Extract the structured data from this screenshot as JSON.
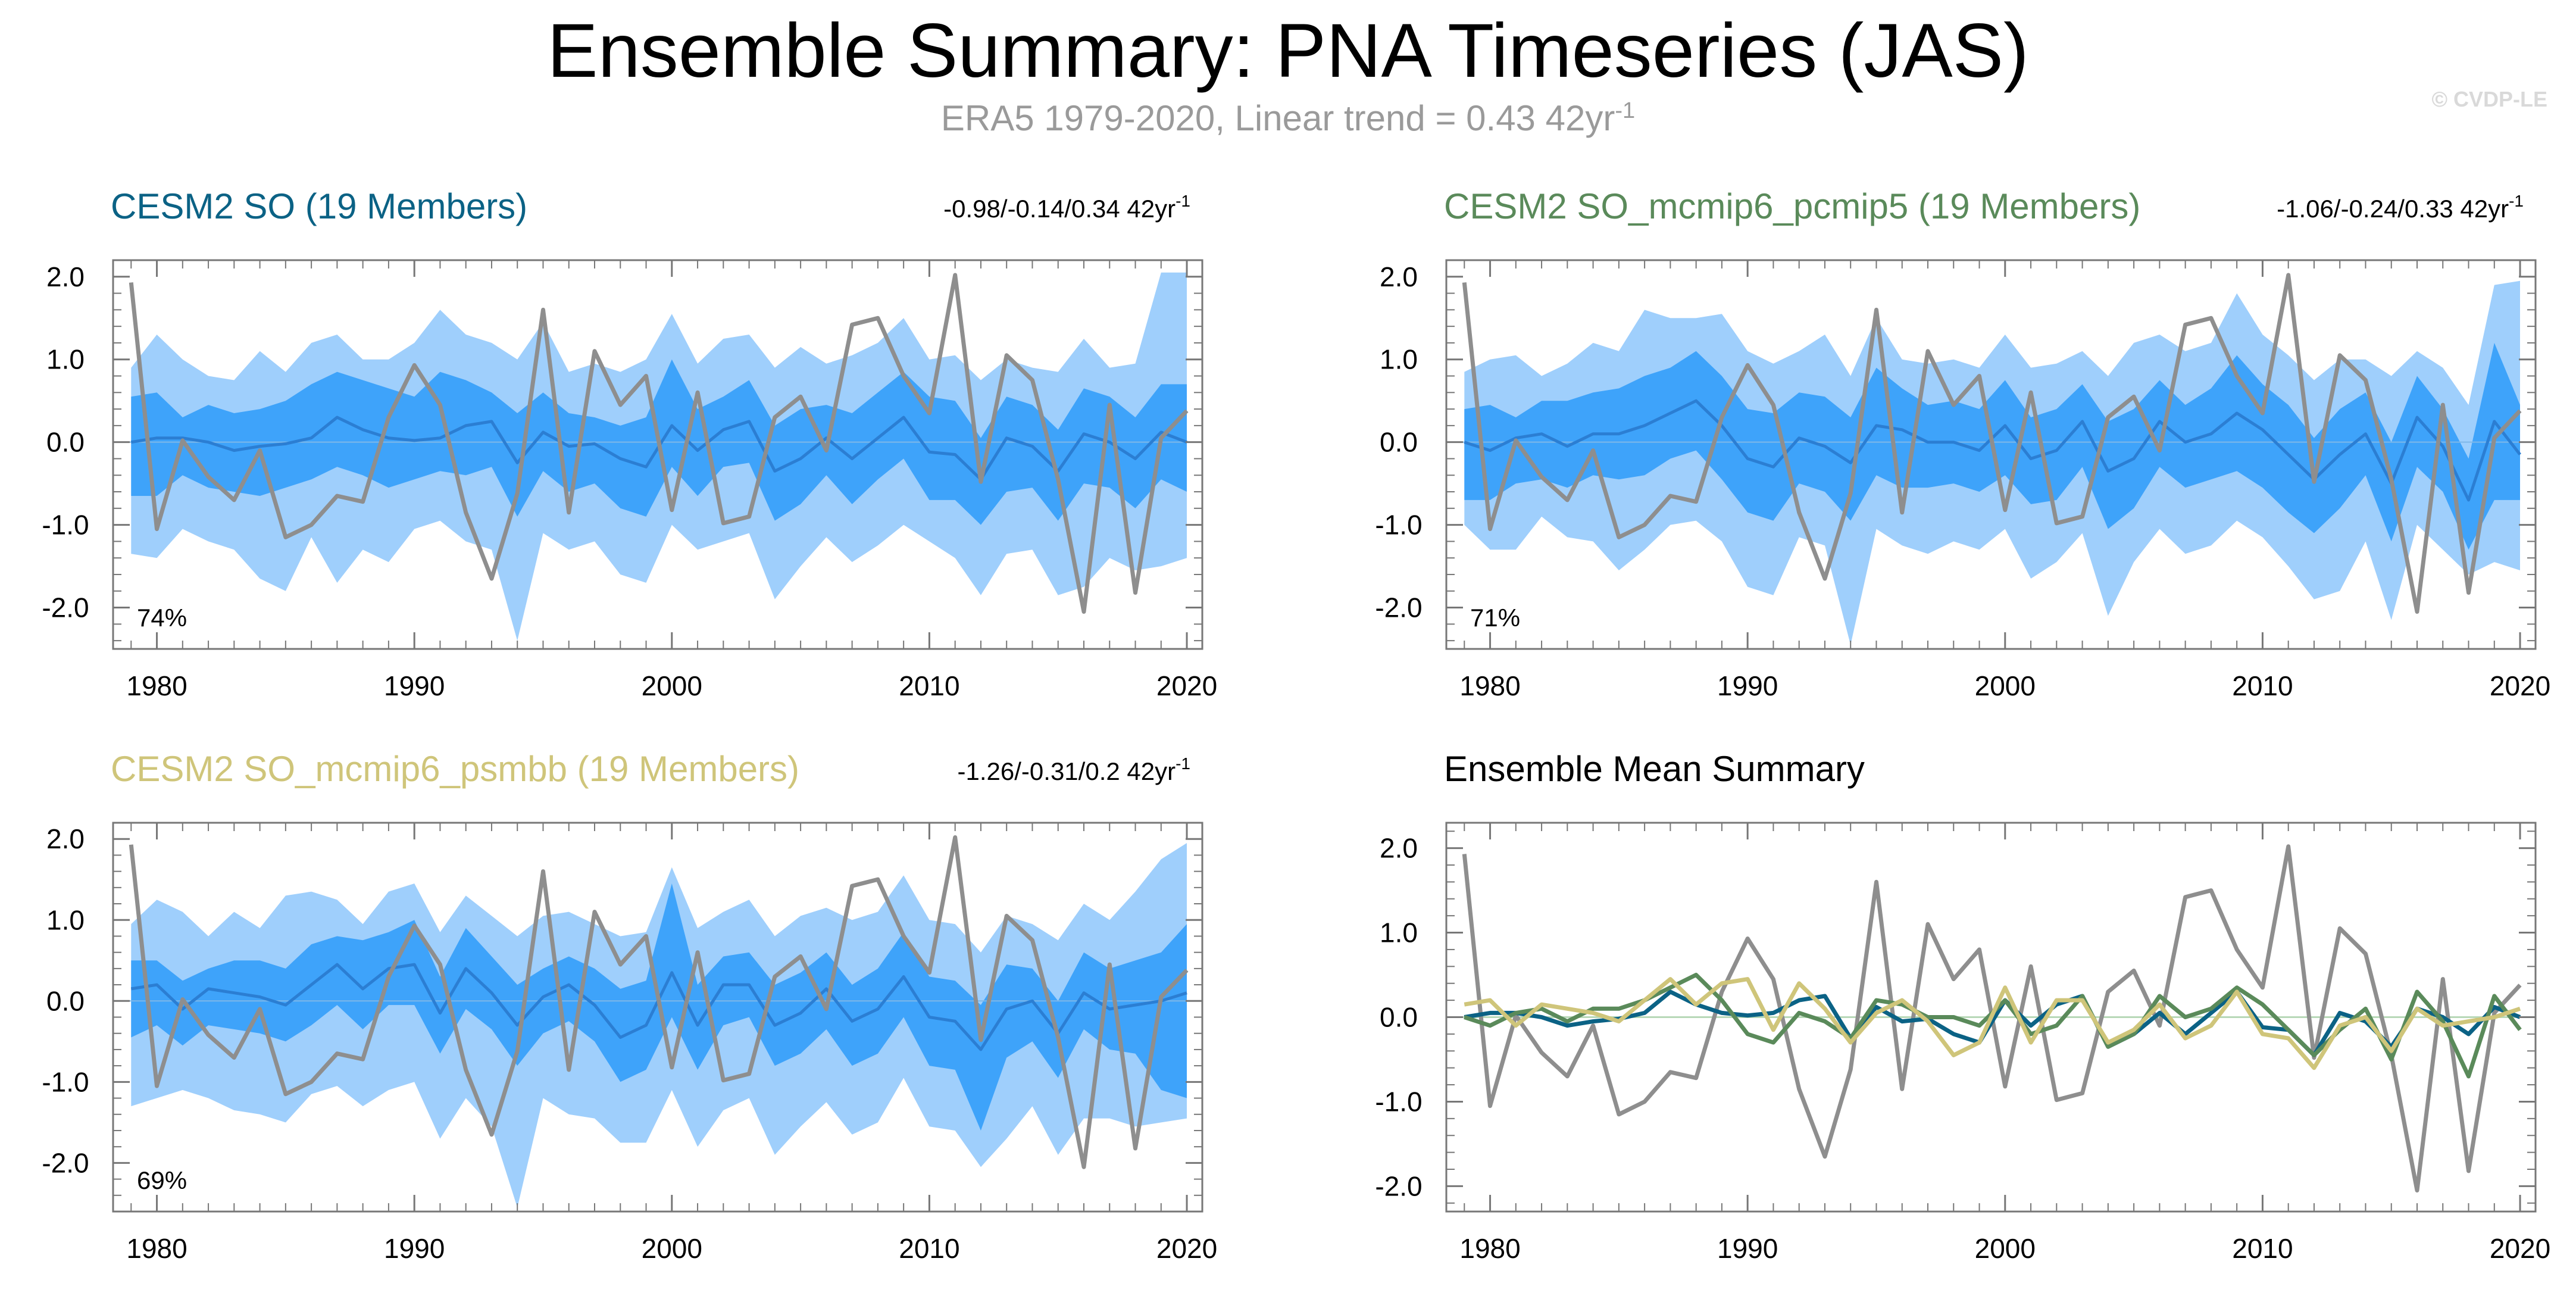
{
  "header": {
    "title": "Ensemble Summary: PNA Timeseries (JAS)",
    "subtitle_main": "ERA5 1979-2020, Linear trend = 0.43 42yr",
    "subtitle_exp": "-1",
    "watermark": "© CVDP-LE"
  },
  "colors": {
    "outer_band": "#9fcffc",
    "inner_band": "#3ea3fa",
    "ens_mean_line": "#2b7ed3",
    "obs": "#8e8e8e",
    "cesm2_so": "#0b6285",
    "pcmip5": "#5a8a5a",
    "psmbb": "#cfc57a",
    "axis": "#777777"
  },
  "chart_data": [
    {
      "type": "area",
      "title": "CESM2 SO (19 Members)",
      "title_color": "#0b6285",
      "trend_label": "-0.98/-0.14/0.34 42yr",
      "trend_exp": "-1",
      "percent_label": "74%",
      "x_start": 1979,
      "x_end": 2020,
      "xlim": [
        1978.3,
        2020.6
      ],
      "ylim": [
        -2.5,
        2.2
      ],
      "x_ticks": [
        1980,
        1990,
        2000,
        2010,
        2020
      ],
      "y_ticks": [
        "2.0",
        "1.0",
        "0.0",
        "-1.0",
        "-2.0"
      ],
      "observations": [
        1.93,
        -1.05,
        0.02,
        -0.42,
        -0.7,
        -0.1,
        -1.15,
        -1.0,
        -0.65,
        -0.72,
        0.3,
        0.93,
        0.45,
        -0.85,
        -1.65,
        -0.62,
        1.6,
        -0.85,
        1.1,
        0.45,
        0.8,
        -0.82,
        0.6,
        -0.98,
        -0.9,
        0.3,
        0.55,
        -0.1,
        1.42,
        1.5,
        0.8,
        0.35,
        2.02,
        -0.48,
        1.05,
        0.75,
        -0.45,
        -2.05,
        0.45,
        -1.82,
        0.05,
        0.38
      ],
      "ensemble_mean": [
        0.0,
        0.05,
        0.05,
        0.0,
        -0.1,
        -0.05,
        -0.02,
        0.05,
        0.3,
        0.15,
        0.05,
        0.02,
        0.05,
        0.2,
        0.25,
        -0.25,
        0.12,
        -0.05,
        -0.02,
        -0.2,
        -0.3,
        0.2,
        -0.1,
        0.15,
        0.25,
        -0.35,
        -0.2,
        0.05,
        -0.2,
        0.05,
        0.3,
        -0.12,
        -0.15,
        -0.45,
        0.05,
        -0.05,
        -0.35,
        0.1,
        0.0,
        -0.2,
        0.12,
        0.0
      ],
      "inner_upper": [
        0.55,
        0.6,
        0.3,
        0.45,
        0.35,
        0.4,
        0.5,
        0.7,
        0.85,
        0.75,
        0.65,
        0.55,
        0.85,
        0.75,
        0.6,
        0.35,
        0.6,
        0.35,
        0.3,
        0.2,
        0.3,
        1.0,
        0.4,
        0.55,
        0.75,
        0.2,
        0.4,
        0.45,
        0.35,
        0.6,
        0.85,
        0.55,
        0.5,
        0.05,
        0.55,
        0.45,
        0.15,
        0.65,
        0.55,
        0.3,
        0.7,
        0.7
      ],
      "inner_lower": [
        -0.65,
        -0.65,
        -0.4,
        -0.55,
        -0.6,
        -0.65,
        -0.55,
        -0.45,
        -0.3,
        -0.4,
        -0.55,
        -0.45,
        -0.35,
        -0.4,
        -0.3,
        -0.9,
        -0.35,
        -0.6,
        -0.5,
        -0.8,
        -0.9,
        -0.3,
        -0.65,
        -0.3,
        -0.25,
        -0.95,
        -0.75,
        -0.4,
        -0.75,
        -0.45,
        -0.2,
        -0.7,
        -0.7,
        -1.0,
        -0.6,
        -0.55,
        -0.95,
        -0.5,
        -0.55,
        -0.8,
        -0.45,
        -0.6
      ],
      "outer_upper": [
        0.9,
        1.3,
        1.0,
        0.8,
        0.75,
        1.1,
        0.85,
        1.2,
        1.3,
        1.0,
        1.0,
        1.2,
        1.6,
        1.3,
        1.2,
        1.0,
        1.45,
        0.85,
        0.95,
        0.85,
        1.0,
        1.55,
        0.95,
        1.25,
        1.3,
        0.9,
        1.15,
        0.95,
        1.05,
        1.2,
        1.5,
        1.0,
        1.05,
        0.75,
        1.0,
        0.9,
        0.85,
        1.25,
        0.9,
        0.95,
        2.05,
        2.05
      ],
      "outer_lower": [
        -1.35,
        -1.4,
        -1.05,
        -1.2,
        -1.3,
        -1.65,
        -1.8,
        -1.15,
        -1.7,
        -1.3,
        -1.45,
        -1.05,
        -0.95,
        -1.2,
        -1.3,
        -2.4,
        -1.1,
        -1.3,
        -1.2,
        -1.6,
        -1.7,
        -1.0,
        -1.3,
        -1.2,
        -1.1,
        -1.9,
        -1.5,
        -1.15,
        -1.45,
        -1.25,
        -1.0,
        -1.2,
        -1.4,
        -1.85,
        -1.35,
        -1.3,
        -1.85,
        -1.75,
        -1.4,
        -1.55,
        -1.5,
        -1.4
      ]
    },
    {
      "type": "area",
      "title": "CESM2 SO_mcmip6_pcmip5 (19 Members)",
      "title_color": "#5a8a5a",
      "trend_label": "-1.06/-0.24/0.33 42yr",
      "trend_exp": "-1",
      "percent_label": "71%",
      "x_start": 1979,
      "x_end": 2020,
      "xlim": [
        1978.3,
        2020.6
      ],
      "ylim": [
        -2.5,
        2.2
      ],
      "x_ticks": [
        1980,
        1990,
        2000,
        2010,
        2020
      ],
      "y_ticks": [
        "2.0",
        "1.0",
        "0.0",
        "-1.0",
        "-2.0"
      ],
      "observations": [
        1.93,
        -1.05,
        0.02,
        -0.42,
        -0.7,
        -0.1,
        -1.15,
        -1.0,
        -0.65,
        -0.72,
        0.3,
        0.93,
        0.45,
        -0.85,
        -1.65,
        -0.62,
        1.6,
        -0.85,
        1.1,
        0.45,
        0.8,
        -0.82,
        0.6,
        -0.98,
        -0.9,
        0.3,
        0.55,
        -0.1,
        1.42,
        1.5,
        0.8,
        0.35,
        2.02,
        -0.48,
        1.05,
        0.75,
        -0.45,
        -2.05,
        0.45,
        -1.82,
        0.05,
        0.38
      ],
      "ensemble_mean": [
        0.0,
        -0.1,
        0.05,
        0.1,
        -0.05,
        0.1,
        0.1,
        0.2,
        0.35,
        0.5,
        0.2,
        -0.2,
        -0.3,
        0.05,
        -0.05,
        -0.25,
        0.2,
        0.15,
        0.0,
        0.0,
        -0.1,
        0.2,
        -0.2,
        -0.1,
        0.25,
        -0.35,
        -0.2,
        0.25,
        0.0,
        0.1,
        0.35,
        0.15,
        -0.15,
        -0.45,
        -0.15,
        0.1,
        -0.5,
        0.3,
        -0.05,
        -0.7,
        0.25,
        -0.15
      ],
      "inner_upper": [
        0.4,
        0.45,
        0.3,
        0.5,
        0.5,
        0.6,
        0.65,
        0.8,
        0.9,
        1.1,
        0.8,
        0.4,
        0.35,
        0.6,
        0.55,
        0.3,
        0.9,
        0.65,
        0.45,
        0.5,
        0.4,
        0.75,
        0.3,
        0.4,
        0.7,
        0.25,
        0.4,
        0.75,
        0.45,
        0.65,
        1.05,
        0.7,
        0.45,
        0.05,
        0.4,
        0.6,
        0.0,
        0.8,
        0.4,
        -0.2,
        1.2,
        0.45
      ],
      "inner_lower": [
        -0.7,
        -0.7,
        -0.5,
        -0.45,
        -0.55,
        -0.4,
        -0.45,
        -0.4,
        -0.2,
        -0.1,
        -0.45,
        -0.85,
        -0.95,
        -0.5,
        -0.6,
        -0.95,
        -0.4,
        -0.55,
        -0.55,
        -0.5,
        -0.6,
        -0.4,
        -0.75,
        -0.7,
        -0.3,
        -1.05,
        -0.8,
        -0.3,
        -0.55,
        -0.45,
        -0.35,
        -0.55,
        -0.85,
        -1.1,
        -0.8,
        -0.4,
        -1.2,
        -0.3,
        -0.6,
        -1.3,
        -0.7,
        -0.7
      ],
      "outer_upper": [
        0.85,
        1.0,
        1.05,
        0.8,
        0.95,
        1.2,
        1.1,
        1.6,
        1.5,
        1.5,
        1.55,
        1.1,
        0.95,
        1.1,
        1.3,
        0.8,
        1.5,
        1.0,
        0.95,
        1.0,
        0.9,
        1.3,
        0.9,
        0.95,
        1.1,
        0.8,
        1.2,
        1.3,
        1.1,
        1.2,
        1.8,
        1.3,
        1.05,
        0.75,
        1.0,
        1.0,
        0.8,
        1.1,
        0.9,
        0.45,
        1.9,
        1.95
      ],
      "outer_lower": [
        -1.0,
        -1.3,
        -1.3,
        -0.9,
        -1.15,
        -1.2,
        -1.55,
        -1.3,
        -1.0,
        -0.95,
        -1.2,
        -1.75,
        -1.85,
        -1.15,
        -1.25,
        -2.45,
        -1.05,
        -1.25,
        -1.35,
        -1.2,
        -1.3,
        -1.05,
        -1.65,
        -1.45,
        -1.1,
        -2.1,
        -1.45,
        -1.05,
        -1.35,
        -1.25,
        -0.95,
        -1.15,
        -1.5,
        -1.9,
        -1.8,
        -1.2,
        -2.15,
        -1.0,
        -1.3,
        -1.6,
        -1.45,
        -1.55
      ]
    },
    {
      "type": "area",
      "title": "CESM2 SO_mcmip6_psmbb (19 Members)",
      "title_color": "#cfc57a",
      "trend_label": "-1.26/-0.31/0.2 42yr",
      "trend_exp": "-1",
      "percent_label": "69%",
      "x_start": 1979,
      "x_end": 2020,
      "xlim": [
        1978.3,
        2020.6
      ],
      "ylim": [
        -2.6,
        2.2
      ],
      "x_ticks": [
        1980,
        1990,
        2000,
        2010,
        2020
      ],
      "y_ticks": [
        "2.0",
        "1.0",
        "0.0",
        "-1.0",
        "-2.0"
      ],
      "observations": [
        1.93,
        -1.05,
        0.02,
        -0.42,
        -0.7,
        -0.1,
        -1.15,
        -1.0,
        -0.65,
        -0.72,
        0.3,
        0.93,
        0.45,
        -0.85,
        -1.65,
        -0.62,
        1.6,
        -0.85,
        1.1,
        0.45,
        0.8,
        -0.82,
        0.6,
        -0.98,
        -0.9,
        0.3,
        0.55,
        -0.1,
        1.42,
        1.5,
        0.8,
        0.35,
        2.02,
        -0.48,
        1.05,
        0.75,
        -0.45,
        -2.05,
        0.45,
        -1.82,
        0.05,
        0.38
      ],
      "ensemble_mean": [
        0.15,
        0.2,
        -0.1,
        0.15,
        0.1,
        0.05,
        -0.05,
        0.2,
        0.45,
        0.15,
        0.4,
        0.45,
        -0.15,
        0.4,
        0.1,
        -0.3,
        0.05,
        0.2,
        -0.05,
        -0.45,
        -0.3,
        0.35,
        -0.3,
        0.2,
        0.2,
        -0.3,
        -0.15,
        0.15,
        -0.25,
        -0.1,
        0.3,
        -0.2,
        -0.25,
        -0.6,
        -0.1,
        0.0,
        -0.4,
        0.1,
        -0.1,
        -0.05,
        0.0,
        0.1
      ],
      "inner_upper": [
        0.5,
        0.5,
        0.25,
        0.4,
        0.5,
        0.5,
        0.4,
        0.7,
        0.8,
        0.75,
        0.85,
        1.0,
        0.3,
        0.9,
        0.55,
        0.2,
        0.4,
        0.55,
        0.4,
        0.15,
        0.25,
        1.45,
        0.2,
        0.55,
        0.6,
        0.2,
        0.35,
        0.6,
        0.2,
        0.4,
        0.85,
        0.3,
        0.25,
        -0.05,
        0.45,
        0.4,
        0.0,
        0.6,
        0.4,
        0.5,
        0.6,
        0.95
      ],
      "inner_lower": [
        -0.45,
        -0.3,
        -0.55,
        -0.3,
        -0.35,
        -0.4,
        -0.5,
        -0.3,
        -0.05,
        -0.35,
        -0.05,
        -0.05,
        -0.65,
        -0.1,
        -0.35,
        -0.8,
        -0.4,
        -0.25,
        -0.5,
        -1.0,
        -0.85,
        -0.2,
        -0.85,
        -0.3,
        -0.2,
        -0.8,
        -0.65,
        -0.35,
        -0.8,
        -0.65,
        -0.2,
        -0.8,
        -0.85,
        -1.6,
        -0.7,
        -0.5,
        -0.95,
        -0.35,
        -0.6,
        -0.65,
        -1.1,
        -1.2
      ],
      "outer_upper": [
        0.95,
        1.25,
        1.1,
        0.8,
        1.1,
        0.9,
        1.3,
        1.35,
        1.25,
        0.95,
        1.35,
        1.45,
        0.85,
        1.3,
        1.05,
        0.8,
        1.05,
        1.1,
        0.95,
        0.8,
        0.85,
        1.65,
        0.9,
        1.1,
        1.25,
        0.8,
        1.05,
        1.15,
        1.0,
        1.1,
        1.55,
        1.0,
        0.95,
        0.6,
        1.05,
        0.95,
        0.75,
        1.2,
        1.0,
        1.35,
        1.75,
        1.95
      ],
      "outer_lower": [
        -1.3,
        -1.2,
        -1.1,
        -1.2,
        -1.35,
        -1.4,
        -1.5,
        -1.15,
        -1.05,
        -1.3,
        -1.1,
        -1.0,
        -1.7,
        -1.2,
        -1.55,
        -2.55,
        -1.2,
        -1.4,
        -1.45,
        -1.75,
        -1.75,
        -1.1,
        -1.8,
        -1.35,
        -1.2,
        -1.9,
        -1.55,
        -1.25,
        -1.65,
        -1.5,
        -0.95,
        -1.55,
        -1.6,
        -2.05,
        -1.7,
        -1.3,
        -1.9,
        -1.45,
        -1.45,
        -1.55,
        -1.5,
        -1.45
      ]
    },
    {
      "type": "line",
      "title": "Ensemble Mean Summary",
      "title_color": "#000000",
      "x_start": 1979,
      "x_end": 2020,
      "xlim": [
        1978.3,
        2020.6
      ],
      "ylim": [
        -2.3,
        2.3
      ],
      "x_ticks": [
        1980,
        1990,
        2000,
        2010,
        2020
      ],
      "y_ticks": [
        "2.0",
        "1.0",
        "0.0",
        "-1.0",
        "-2.0"
      ],
      "series": [
        {
          "name": "ERA5",
          "color": "#8e8e8e",
          "values": [
            1.93,
            -1.05,
            0.02,
            -0.42,
            -0.7,
            -0.1,
            -1.15,
            -1.0,
            -0.65,
            -0.72,
            0.3,
            0.93,
            0.45,
            -0.85,
            -1.65,
            -0.62,
            1.6,
            -0.85,
            1.1,
            0.45,
            0.8,
            -0.82,
            0.6,
            -0.98,
            -0.9,
            0.3,
            0.55,
            -0.1,
            1.42,
            1.5,
            0.8,
            0.35,
            2.02,
            -0.48,
            1.05,
            0.75,
            -0.45,
            -2.05,
            0.45,
            -1.82,
            0.05,
            0.38
          ]
        },
        {
          "name": "CESM2 SO",
          "color": "#0b6285",
          "values": [
            0.0,
            0.05,
            0.05,
            0.0,
            -0.1,
            -0.05,
            -0.02,
            0.05,
            0.3,
            0.15,
            0.05,
            0.02,
            0.05,
            0.2,
            0.25,
            -0.25,
            0.12,
            -0.05,
            -0.02,
            -0.2,
            -0.3,
            0.2,
            -0.1,
            0.15,
            0.25,
            -0.35,
            -0.2,
            0.05,
            -0.2,
            0.05,
            0.3,
            -0.12,
            -0.15,
            -0.45,
            0.05,
            -0.05,
            -0.35,
            0.1,
            0.0,
            -0.2,
            0.12,
            0.0
          ]
        },
        {
          "name": "CESM2 SO_mcmip6_pcmip5",
          "color": "#5a8a5a",
          "values": [
            0.0,
            -0.1,
            0.05,
            0.1,
            -0.05,
            0.1,
            0.1,
            0.2,
            0.35,
            0.5,
            0.2,
            -0.2,
            -0.3,
            0.05,
            -0.05,
            -0.25,
            0.2,
            0.15,
            0.0,
            0.0,
            -0.1,
            0.2,
            -0.2,
            -0.1,
            0.25,
            -0.35,
            -0.2,
            0.25,
            0.0,
            0.1,
            0.35,
            0.15,
            -0.15,
            -0.45,
            -0.15,
            0.1,
            -0.5,
            0.3,
            -0.05,
            -0.7,
            0.25,
            -0.15
          ]
        },
        {
          "name": "CESM2 SO_mcmip6_psmbb",
          "color": "#cfc57a",
          "values": [
            0.15,
            0.2,
            -0.1,
            0.15,
            0.1,
            0.05,
            -0.05,
            0.2,
            0.45,
            0.15,
            0.4,
            0.45,
            -0.15,
            0.4,
            0.1,
            -0.3,
            0.05,
            0.2,
            -0.05,
            -0.45,
            -0.3,
            0.35,
            -0.3,
            0.2,
            0.2,
            -0.3,
            -0.15,
            0.15,
            -0.25,
            -0.1,
            0.3,
            -0.2,
            -0.25,
            -0.6,
            -0.1,
            0.0,
            -0.4,
            0.1,
            -0.1,
            -0.05,
            0.0,
            0.1
          ]
        }
      ]
    }
  ]
}
